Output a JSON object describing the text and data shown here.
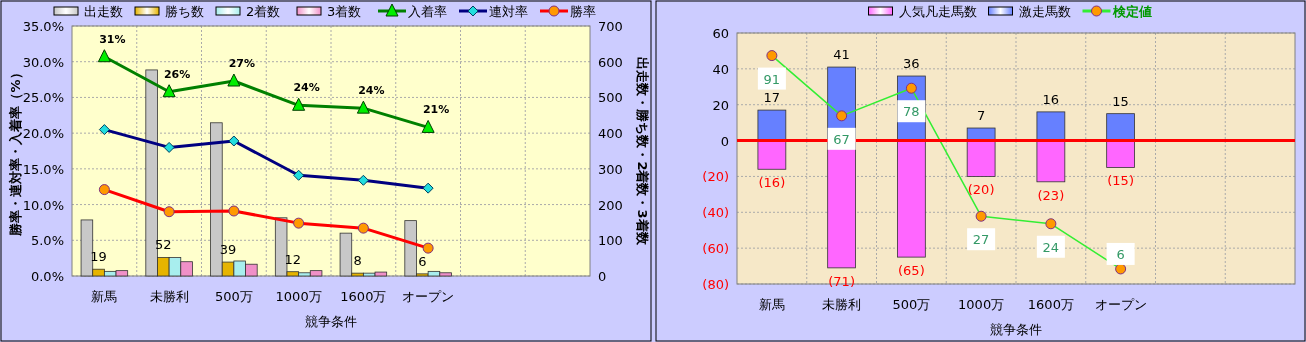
{
  "chart_data": [
    {
      "type": "bar",
      "xlabel": "競争条件",
      "ylabel": "勝率・連対率・入着率（%）",
      "y2label": "出走数・勝ち数・2着数・3着数",
      "categories": [
        "新馬",
        "未勝利",
        "500万",
        "1000万",
        "1600万",
        "オープン",
        null,
        null
      ],
      "series": [
        {
          "name": "出走数",
          "color": "#c8c8c8",
          "axis": "y2",
          "values": [
            157,
            577,
            429,
            163,
            120,
            155,
            null,
            null
          ]
        },
        {
          "name": "勝ち数",
          "color": "#e6b400",
          "axis": "y2",
          "values": [
            19,
            52,
            39,
            12,
            8,
            6,
            null,
            null
          ],
          "value_labels": [
            "19",
            "52",
            "39",
            "12",
            "8",
            "6",
            null,
            null
          ]
        },
        {
          "name": "2着数",
          "color": "#a8eeee",
          "axis": "y2",
          "values": [
            13,
            52,
            42,
            9,
            8,
            13,
            null,
            null
          ]
        },
        {
          "name": "3着数",
          "color": "#f090c8",
          "axis": "y2",
          "values": [
            15,
            40,
            33,
            15,
            11,
            9,
            null,
            null
          ]
        },
        {
          "name": "入着率",
          "type": "line",
          "color": "#008000",
          "marker": "triangle",
          "values": [
            30.7,
            25.8,
            27.3,
            23.9,
            23.5,
            20.8,
            null,
            null
          ],
          "value_labels": [
            "31%",
            "26%",
            "27%",
            "24%",
            "24%",
            "21%",
            null,
            null
          ]
        },
        {
          "name": "連対率",
          "type": "line",
          "color": "#000080",
          "marker": "diamond",
          "values": [
            20.5,
            18.0,
            18.9,
            14.1,
            13.4,
            12.3,
            null,
            null
          ]
        },
        {
          "name": "勝率",
          "type": "line",
          "color": "#ff0000",
          "marker": "circle",
          "values": [
            12.1,
            9.0,
            9.1,
            7.4,
            6.7,
            3.9,
            null,
            null
          ]
        }
      ],
      "ylim": [
        0,
        35
      ],
      "yticks": [
        {
          "value": 0,
          "label": "0.0%"
        },
        {
          "value": 5,
          "label": "5.0%"
        },
        {
          "value": 10,
          "label": "10.0%"
        },
        {
          "value": 15,
          "label": "15.0%"
        },
        {
          "value": 20,
          "label": "20.0%"
        },
        {
          "value": 25,
          "label": "25.0%"
        },
        {
          "value": 30,
          "label": "30.0%"
        },
        {
          "value": 35,
          "label": "35.0%"
        }
      ],
      "y2lim": [
        0,
        700
      ],
      "y2ticks": [
        0,
        100,
        200,
        300,
        400,
        500,
        600,
        700
      ],
      "grid": true,
      "legend": "top"
    },
    {
      "type": "bar",
      "stacked": true,
      "xlabel": "競争条件",
      "categories": [
        "新馬",
        "未勝利",
        "500万",
        "1000万",
        "1600万",
        "オープン",
        null,
        null
      ],
      "series": [
        {
          "name": "人気凡走馬数",
          "color": "#ff66ff",
          "values": [
            -16,
            -71,
            -65,
            -20,
            -23,
            -15,
            null,
            null
          ],
          "value_labels": [
            "(16)",
            "(71)",
            "(65)",
            "(20)",
            "(23)",
            "(15)",
            null,
            null
          ]
        },
        {
          "name": "激走馬数",
          "color": "#6680ff",
          "values": [
            17,
            41,
            36,
            7,
            16,
            15,
            null,
            null
          ]
        },
        {
          "name": "検定値",
          "type": "line",
          "color": "#33ee33",
          "marker": "circle",
          "axis": "y2",
          "values": [
            91,
            67,
            78,
            27,
            24,
            6,
            null,
            null
          ]
        }
      ],
      "ylim": [
        -80,
        60
      ],
      "yticks": [
        {
          "value": -80,
          "label": "(80)"
        },
        {
          "value": -60,
          "label": "(60)"
        },
        {
          "value": -40,
          "label": "(40)"
        },
        {
          "value": -20,
          "label": "(20)"
        },
        0,
        20,
        40,
        60
      ],
      "y2lim": [
        0,
        100
      ],
      "ref_lines": [
        {
          "axis": "y",
          "value": 0,
          "color": "#ff0000"
        }
      ],
      "data_labels": true,
      "grid": true,
      "legend": "top"
    }
  ]
}
